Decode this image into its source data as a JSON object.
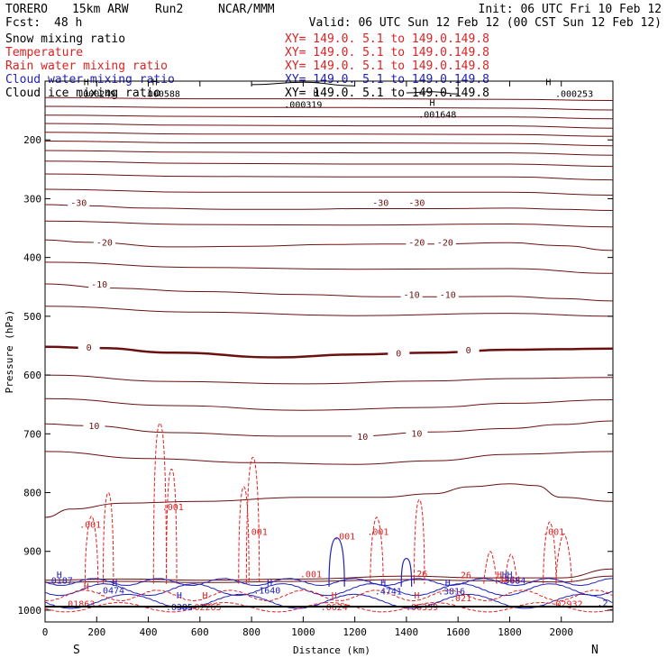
{
  "chart_data": {
    "type": "contour cross-section",
    "header": {
      "model": "TORERO",
      "resolution": "15km ARW",
      "run": "Run2",
      "org": "NCAR/MMM",
      "init": "Init: 06 UTC Fri 10 Feb 12",
      "fcst_label": "Fcst:",
      "fcst_value": "48 h",
      "valid": "Valid: 06 UTC Sun 12 Feb 12 (00 CST Sun 12 Feb 12)"
    },
    "colors": {
      "temperature": "#6b1010",
      "rain": "#dd2222",
      "cloud": "#2222bb",
      "text_black": "#000000",
      "frame": "#000000"
    },
    "legend": [
      {
        "name": "Snow mixing ratio",
        "color": "#000000",
        "xy": "XY= 149.0.   5.1 to 149.0.149.8"
      },
      {
        "name": "Temperature",
        "color": "#dd2222",
        "xy": "XY= 149.0.   5.1 to 149.0.149.8"
      },
      {
        "name": "Rain water mixing ratio",
        "color": "#dd2222",
        "xy": "XY= 149.0.   5.1 to 149.0.149.8"
      },
      {
        "name": "Cloud water mixing ratio",
        "color": "#2222bb",
        "xy": "XY= 149.0.   5.1 to 149.0.149.8"
      },
      {
        "name": "Cloud ice mixing ratio",
        "color": "#000000",
        "xy": "XY= 149.0.   5.1 to 149.0.149.8"
      }
    ],
    "xlabel": "Distance (km)",
    "ylabel": "Pressure (hPa)",
    "xlim": [
      0,
      2200
    ],
    "ylim": [
      1020,
      100
    ],
    "x_ticks": [
      0,
      200,
      400,
      600,
      800,
      1000,
      1200,
      1400,
      1600,
      1800,
      2000
    ],
    "y_ticks": [
      200,
      300,
      400,
      500,
      600,
      700,
      800,
      900,
      1000
    ],
    "direction_left": "S",
    "direction_right": "N",
    "isotherms": [
      {
        "label": "-30",
        "points": [
          [
            0,
            310
          ],
          [
            150,
            312
          ],
          [
            400,
            316
          ],
          [
            700,
            318
          ],
          [
            1000,
            318
          ],
          [
            1200,
            317
          ],
          [
            1500,
            317
          ],
          [
            1800,
            316
          ],
          [
            2000,
            318
          ],
          [
            2200,
            320
          ]
        ]
      },
      {
        "label": "-20",
        "points": [
          [
            0,
            370
          ],
          [
            150,
            374
          ],
          [
            500,
            382
          ],
          [
            800,
            381
          ],
          [
            1100,
            378
          ],
          [
            1300,
            377
          ],
          [
            1500,
            377
          ],
          [
            1800,
            375
          ],
          [
            2000,
            380
          ],
          [
            2200,
            388
          ]
        ]
      },
      {
        "label": "-10",
        "points": [
          [
            0,
            445
          ],
          [
            250,
            452
          ],
          [
            600,
            458
          ],
          [
            1000,
            463
          ],
          [
            1300,
            467
          ],
          [
            1500,
            467
          ],
          [
            1800,
            466
          ],
          [
            2000,
            470
          ],
          [
            2200,
            474
          ]
        ]
      },
      {
        "label": "0",
        "bold": true,
        "points": [
          [
            0,
            552
          ],
          [
            200,
            554
          ],
          [
            500,
            562
          ],
          [
            900,
            570
          ],
          [
            1200,
            565
          ],
          [
            1500,
            562
          ],
          [
            1800,
            557
          ],
          [
            2000,
            556
          ],
          [
            2200,
            555
          ]
        ]
      },
      {
        "label": "10",
        "points": [
          [
            0,
            683
          ],
          [
            150,
            686
          ],
          [
            500,
            698
          ],
          [
            900,
            704
          ],
          [
            1200,
            704
          ],
          [
            1500,
            697
          ],
          [
            1800,
            691
          ],
          [
            2000,
            684
          ],
          [
            2200,
            678
          ]
        ]
      }
    ],
    "isotherm_labels": [
      {
        "text": "-30",
        "x": 130,
        "y": 306
      },
      {
        "text": "-30",
        "x": 1300,
        "y": 306
      },
      {
        "text": "-30",
        "x": 1440,
        "y": 306
      },
      {
        "text": "-20",
        "x": 230,
        "y": 374
      },
      {
        "text": "-20",
        "x": 1440,
        "y": 374
      },
      {
        "text": "-20",
        "x": 1550,
        "y": 374
      },
      {
        "text": "-10",
        "x": 210,
        "y": 445
      },
      {
        "text": "-10",
        "x": 1420,
        "y": 463
      },
      {
        "text": "-10",
        "x": 1560,
        "y": 463
      },
      {
        "text": "0",
        "x": 170,
        "y": 552
      },
      {
        "text": "0",
        "x": 1370,
        "y": 562
      },
      {
        "text": "0",
        "x": 1640,
        "y": 557
      },
      {
        "text": "10",
        "x": 190,
        "y": 686
      },
      {
        "text": "10",
        "x": 1230,
        "y": 704
      },
      {
        "text": "10",
        "x": 1440,
        "y": 699
      }
    ],
    "extra_temperature_lines": [
      [
        [
          0,
          128
        ],
        [
          600,
          130
        ],
        [
          1200,
          130
        ],
        [
          1800,
          131
        ],
        [
          2200,
          133
        ]
      ],
      [
        [
          0,
          143
        ],
        [
          600,
          145
        ],
        [
          1200,
          145
        ],
        [
          1800,
          146
        ],
        [
          2200,
          149
        ]
      ],
      [
        [
          0,
          158
        ],
        [
          600,
          160
        ],
        [
          1200,
          161
        ],
        [
          1800,
          161
        ],
        [
          2200,
          164
        ]
      ],
      [
        [
          0,
          172
        ],
        [
          600,
          175
        ],
        [
          1200,
          176
        ],
        [
          1800,
          176
        ],
        [
          2200,
          180
        ]
      ],
      [
        [
          0,
          187
        ],
        [
          600,
          190
        ],
        [
          1200,
          190
        ],
        [
          1800,
          191
        ],
        [
          2200,
          194
        ]
      ],
      [
        [
          0,
          202
        ],
        [
          600,
          205
        ],
        [
          1200,
          205
        ],
        [
          1800,
          206
        ],
        [
          2200,
          210
        ]
      ],
      [
        [
          0,
          218
        ],
        [
          600,
          221
        ],
        [
          1200,
          222
        ],
        [
          1800,
          222
        ],
        [
          2200,
          226
        ]
      ],
      [
        [
          0,
          236
        ],
        [
          600,
          240
        ],
        [
          1200,
          241
        ],
        [
          1800,
          241
        ],
        [
          2200,
          245
        ]
      ],
      [
        [
          0,
          258
        ],
        [
          600,
          262
        ],
        [
          1200,
          263
        ],
        [
          1800,
          263
        ],
        [
          2200,
          268
        ]
      ],
      [
        [
          0,
          284
        ],
        [
          600,
          289
        ],
        [
          1200,
          289
        ],
        [
          1800,
          289
        ],
        [
          2200,
          294
        ]
      ],
      [
        [
          0,
          338
        ],
        [
          600,
          344
        ],
        [
          1200,
          345
        ],
        [
          1800,
          343
        ],
        [
          2200,
          348
        ]
      ],
      [
        [
          0,
          408
        ],
        [
          600,
          417
        ],
        [
          1200,
          420
        ],
        [
          1800,
          419
        ],
        [
          2200,
          427
        ]
      ],
      [
        [
          0,
          483
        ],
        [
          600,
          493
        ],
        [
          1200,
          499
        ],
        [
          1800,
          495
        ],
        [
          2200,
          500
        ]
      ],
      [
        [
          0,
          600
        ],
        [
          500,
          611
        ],
        [
          1000,
          615
        ],
        [
          1500,
          610
        ],
        [
          1800,
          606
        ],
        [
          2200,
          604
        ]
      ],
      [
        [
          0,
          640
        ],
        [
          500,
          652
        ],
        [
          1000,
          660
        ],
        [
          1500,
          655
        ],
        [
          1800,
          648
        ],
        [
          2200,
          642
        ]
      ],
      [
        [
          0,
          730
        ],
        [
          400,
          742
        ],
        [
          800,
          749
        ],
        [
          1200,
          752
        ],
        [
          1500,
          746
        ],
        [
          1800,
          735
        ],
        [
          2200,
          730
        ]
      ],
      [
        [
          0,
          842
        ],
        [
          100,
          828
        ],
        [
          300,
          818
        ],
        [
          600,
          815
        ],
        [
          1000,
          808
        ],
        [
          1300,
          808
        ],
        [
          1500,
          802
        ],
        [
          1650,
          790
        ],
        [
          1800,
          785
        ],
        [
          1900,
          788
        ],
        [
          2000,
          808
        ],
        [
          2200,
          815
        ]
      ],
      [
        [
          0,
          949
        ],
        [
          300,
          947
        ],
        [
          600,
          949
        ],
        [
          1000,
          947
        ],
        [
          1400,
          942
        ],
        [
          1700,
          945
        ],
        [
          2000,
          945
        ],
        [
          2200,
          930
        ]
      ],
      [
        [
          0,
          953
        ],
        [
          300,
          951
        ],
        [
          600,
          953
        ],
        [
          1000,
          951
        ],
        [
          1400,
          948
        ],
        [
          1700,
          950
        ],
        [
          2000,
          952
        ],
        [
          2200,
          942
        ]
      ]
    ],
    "rain_labels": [
      {
        "text": ".001",
        "x": 175,
        "y": 860
      },
      {
        "text": ".001",
        "x": 495,
        "y": 830
      },
      {
        "text": ".001",
        "x": 820,
        "y": 872
      },
      {
        "text": ".001",
        "x": 1160,
        "y": 880
      },
      {
        "text": ".001",
        "x": 1290,
        "y": 872
      },
      {
        "text": ".001",
        "x": 1970,
        "y": 872
      },
      {
        "text": ".001",
        "x": 1030,
        "y": 944
      },
      {
        "text": ".01863",
        "x": 130,
        "y": 995
      },
      {
        "text": ".02265",
        "x": 620,
        "y": 1000
      },
      {
        "text": ".0624",
        "x": 1120,
        "y": 1000
      },
      {
        "text": ".06339",
        "x": 1460,
        "y": 1000
      },
      {
        "text": ".02932",
        "x": 2020,
        "y": 995
      },
      {
        "text": ".26",
        "x": 1450,
        "y": 943
      },
      {
        "text": ".26",
        "x": 1620,
        "y": 946
      },
      {
        "text": ".3684",
        "x": 1790,
        "y": 953
      },
      {
        "text": ".021",
        "x": 1610,
        "y": 985
      }
    ],
    "cloud_labels": [
      {
        "text": ".0187",
        "x": 55,
        "y": 955
      },
      {
        "text": ".0474",
        "x": 255,
        "y": 972
      },
      {
        "text": ".0385",
        "x": 520,
        "y": 1000
      },
      {
        "text": ".1640",
        "x": 860,
        "y": 972
      },
      {
        "text": ".4741",
        "x": 1330,
        "y": 973
      },
      {
        "text": ".3816",
        "x": 1575,
        "y": 973
      },
      {
        "text": ".2",
        "x": 2160,
        "y": 993
      },
      {
        "text": ".3684",
        "x": 1810,
        "y": 955
      }
    ],
    "snow_labels": [
      {
        "text": ".000249",
        "x": 200,
        "y": 127
      },
      {
        "text": ".000588",
        "x": 450,
        "y": 127
      },
      {
        "text": ".000319",
        "x": 1000,
        "y": 145
      },
      {
        "text": ".001648",
        "x": 1520,
        "y": 162
      },
      {
        "text": ".000253",
        "x": 2050,
        "y": 127
      }
    ],
    "high_markers": [
      {
        "text": "H",
        "x": 160,
        "y": 107,
        "color": "#000000"
      },
      {
        "text": "H",
        "x": 425,
        "y": 107,
        "color": "#000000"
      },
      {
        "text": "H",
        "x": 1050,
        "y": 125,
        "color": "#000000"
      },
      {
        "text": "H",
        "x": 1500,
        "y": 142,
        "color": "#000000"
      },
      {
        "text": "H",
        "x": 1950,
        "y": 107,
        "color": "#000000"
      },
      {
        "text": "H",
        "x": 55,
        "y": 945,
        "color": "#2222bb"
      },
      {
        "text": "H",
        "x": 270,
        "y": 959,
        "color": "#2222bb"
      },
      {
        "text": "H",
        "x": 520,
        "y": 980,
        "color": "#2222bb"
      },
      {
        "text": "H",
        "x": 870,
        "y": 959,
        "color": "#2222bb"
      },
      {
        "text": "H",
        "x": 1310,
        "y": 959,
        "color": "#2222bb"
      },
      {
        "text": "H",
        "x": 1560,
        "y": 959,
        "color": "#2222bb"
      },
      {
        "text": "H",
        "x": 1780,
        "y": 945,
        "color": "#2222bb"
      },
      {
        "text": "H",
        "x": 1800,
        "y": 945,
        "color": "#2222bb"
      },
      {
        "text": "H",
        "x": 160,
        "y": 965,
        "color": "#dd2222"
      },
      {
        "text": "H",
        "x": 620,
        "y": 980,
        "color": "#dd2222"
      },
      {
        "text": "H",
        "x": 1120,
        "y": 980,
        "color": "#dd2222"
      },
      {
        "text": "H",
        "x": 1440,
        "y": 980,
        "color": "#dd2222"
      },
      {
        "text": "H",
        "x": 1760,
        "y": 945,
        "color": "#dd2222"
      }
    ],
    "rain_plumes": [
      {
        "x0": 155,
        "x1": 205,
        "top": 840
      },
      {
        "x0": 225,
        "x1": 265,
        "top": 800
      },
      {
        "x0": 420,
        "x1": 470,
        "top": 682
      },
      {
        "x0": 470,
        "x1": 510,
        "top": 760
      },
      {
        "x0": 750,
        "x1": 790,
        "top": 790
      },
      {
        "x0": 780,
        "x1": 830,
        "top": 740
      },
      {
        "x0": 1260,
        "x1": 1310,
        "top": 842
      },
      {
        "x0": 1430,
        "x1": 1470,
        "top": 812
      },
      {
        "x0": 1700,
        "x1": 1750,
        "top": 900
      },
      {
        "x0": 1780,
        "x1": 1830,
        "top": 905
      },
      {
        "x0": 1930,
        "x1": 1980,
        "top": 850
      },
      {
        "x0": 1980,
        "x1": 2040,
        "top": 870
      }
    ],
    "cloud_plumes": [
      {
        "x0": 1100,
        "x1": 1160,
        "top": 877
      },
      {
        "x0": 1380,
        "x1": 1420,
        "top": 912
      }
    ]
  }
}
